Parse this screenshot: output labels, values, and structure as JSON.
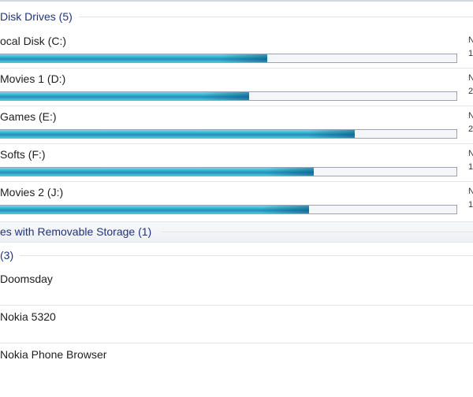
{
  "groups": {
    "disk_drives": "Disk Drives (5)",
    "removable": "es with Removable Storage (1)",
    "other": "(3)"
  },
  "drives": [
    {
      "label": "ocal Disk (C:)",
      "used_fraction": 0.585,
      "info1": "N",
      "info2": "1"
    },
    {
      "label": "Movies 1 (D:)",
      "used_fraction": 0.545,
      "info1": "N",
      "info2": "2"
    },
    {
      "label": "Games (E:)",
      "used_fraction": 0.778,
      "info1": "N",
      "info2": "2"
    },
    {
      "label": "Softs (F:)",
      "used_fraction": 0.687,
      "info1": "N",
      "info2": "1"
    },
    {
      "label": "Movies 2 (J:)",
      "used_fraction": 0.677,
      "info1": "N",
      "info2": "1"
    }
  ],
  "devices": [
    {
      "label": "Doomsday"
    },
    {
      "label": "Nokia 5320"
    },
    {
      "label": "Nokia Phone Browser"
    }
  ],
  "colors": {
    "group_title": "#1e3287",
    "bar_fill": "#1b92b8"
  }
}
